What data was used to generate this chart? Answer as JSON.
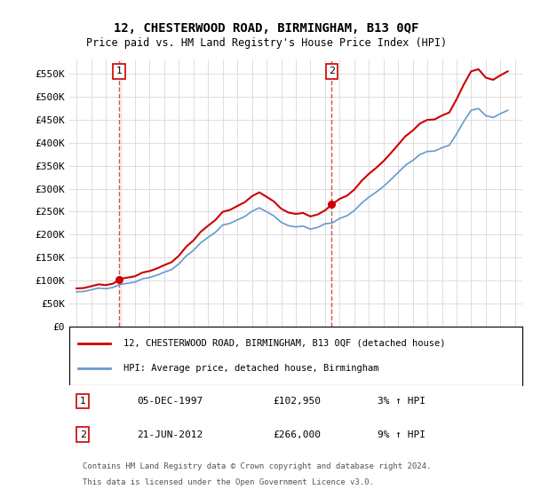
{
  "title": "12, CHESTERWOOD ROAD, BIRMINGHAM, B13 0QF",
  "subtitle": "Price paid vs. HM Land Registry's House Price Index (HPI)",
  "legend_line1": "12, CHESTERWOOD ROAD, BIRMINGHAM, B13 0QF (detached house)",
  "legend_line2": "HPI: Average price, detached house, Birmingham",
  "annotation1_date": "05-DEC-1997",
  "annotation1_price": "£102,950",
  "annotation1_hpi": "3% ↑ HPI",
  "annotation1_year": 1997.92,
  "annotation1_value": 102950,
  "annotation2_date": "21-JUN-2012",
  "annotation2_price": "£266,000",
  "annotation2_hpi": "9% ↑ HPI",
  "annotation2_year": 2012.46,
  "annotation2_value": 266000,
  "footer_line1": "Contains HM Land Registry data © Crown copyright and database right 2024.",
  "footer_line2": "This data is licensed under the Open Government Licence v3.0.",
  "hpi_color": "#6699cc",
  "price_color": "#cc0000",
  "marker_color": "#cc0000",
  "vline_color": "#cc0000",
  "background_color": "#ffffff",
  "grid_color": "#dddddd",
  "ylim_min": 0,
  "ylim_max": 580000,
  "yticks": [
    0,
    50000,
    100000,
    150000,
    200000,
    250000,
    300000,
    350000,
    400000,
    450000,
    500000,
    550000
  ],
  "ytick_labels": [
    "£0",
    "£50K",
    "£100K",
    "£150K",
    "£200K",
    "£250K",
    "£300K",
    "£350K",
    "£400K",
    "£450K",
    "£500K",
    "£550K"
  ],
  "xlim_min": 1994.5,
  "xlim_max": 2025.5,
  "xticks": [
    1995,
    1996,
    1997,
    1998,
    1999,
    2000,
    2001,
    2002,
    2003,
    2004,
    2005,
    2006,
    2007,
    2008,
    2009,
    2010,
    2011,
    2012,
    2013,
    2014,
    2015,
    2016,
    2017,
    2018,
    2019,
    2020,
    2021,
    2022,
    2023,
    2024,
    2025
  ]
}
